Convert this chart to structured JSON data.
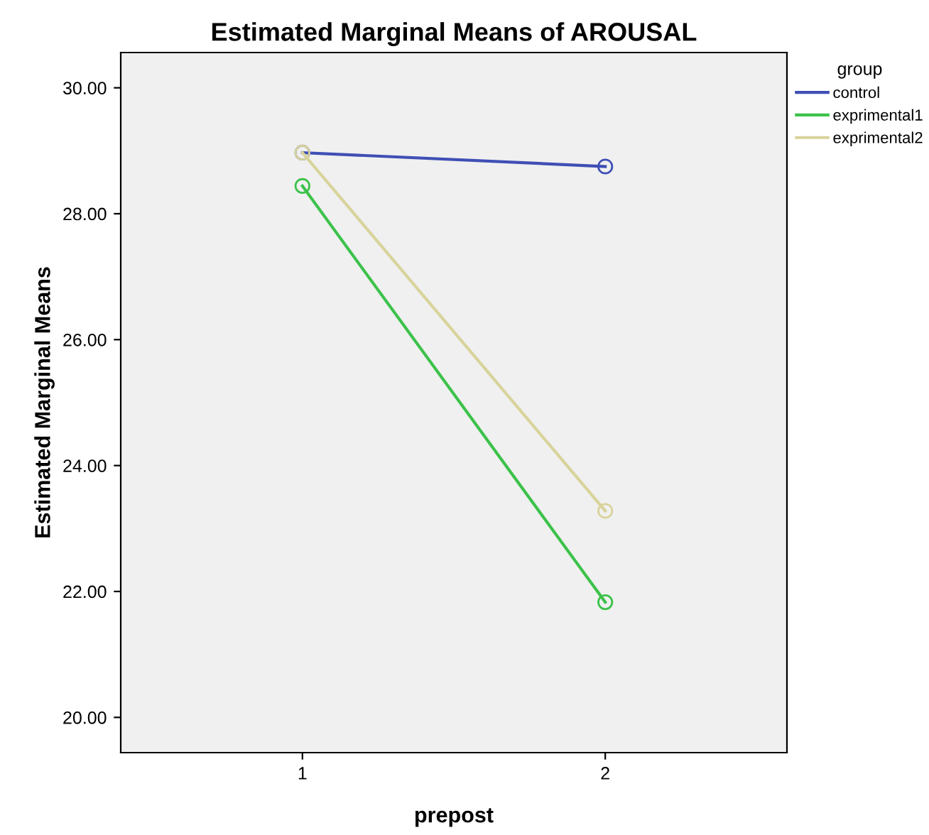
{
  "chart_data": {
    "type": "line",
    "title": "Estimated Marginal Means of AROUSAL",
    "xlabel": "prepost",
    "ylabel": "Estimated Marginal Means",
    "legend_title": "group",
    "x": [
      1,
      2
    ],
    "series": [
      {
        "name": "control",
        "color": "#3f4fb5",
        "values": [
          28.97,
          28.75
        ]
      },
      {
        "name": "exprimental1",
        "color": "#3cc24a",
        "values": [
          28.44,
          21.83
        ]
      },
      {
        "name": "exprimental2",
        "color": "#d8d39a",
        "values": [
          28.97,
          23.28
        ]
      }
    ],
    "xlim": [
      0.4,
      2.6
    ],
    "xticks": [
      1,
      2
    ],
    "ylim": [
      19.44,
      30.56
    ],
    "yticks": [
      {
        "value": 20,
        "label": "20.00"
      },
      {
        "value": 22,
        "label": "22.00"
      },
      {
        "value": 24,
        "label": "24.00"
      },
      {
        "value": 26,
        "label": "26.00"
      },
      {
        "value": 28,
        "label": "28.00"
      },
      {
        "value": 30,
        "label": "30.00"
      }
    ],
    "marker": "circle",
    "legend": "top right",
    "grid": false
  }
}
